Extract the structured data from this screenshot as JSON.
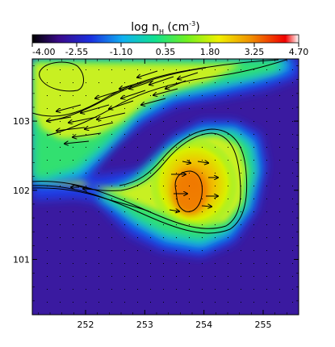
{
  "chart_data": {
    "type": "heatmap",
    "title_parts": {
      "main": "log n",
      "subscript": "H",
      "unit_open": " (cm",
      "unit_power": "-3",
      "unit_close": ")"
    },
    "colorbar": {
      "min": -4.0,
      "max": 4.7,
      "ticks": [
        "-4.00",
        "-2.55",
        "-1.10",
        "0.35",
        "1.80",
        "3.25",
        "4.70"
      ],
      "colormap": [
        "#2a0a6e",
        "#3a1aa0",
        "#2040e0",
        "#10a0f0",
        "#10e0b0",
        "#40f040",
        "#b0f000",
        "#f0f000",
        "#f0b000",
        "#f06000",
        "#f00000",
        "#ffffff"
      ]
    },
    "xlim": [
      251.1,
      255.6
    ],
    "ylim": [
      100.2,
      103.9
    ],
    "xticks": [
      "252",
      "253",
      "254",
      "255"
    ],
    "yticks": [
      "101",
      "102",
      "103"
    ],
    "xlabel": "",
    "ylabel": ""
  }
}
